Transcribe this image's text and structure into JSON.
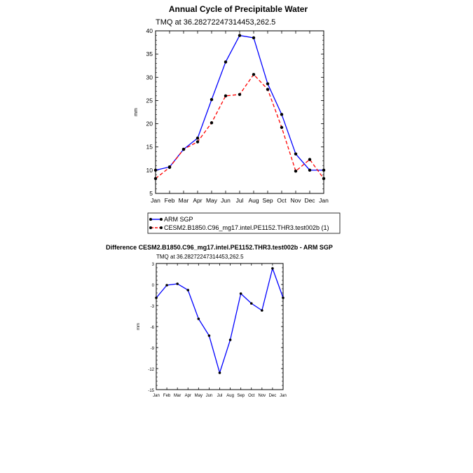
{
  "chart_data": [
    {
      "type": "line",
      "title": "Annual Cycle of Precipitable Water",
      "subtitle": "TMQ at 36.28272247314453,262.5",
      "xlabel": "",
      "ylabel": "mm",
      "categories": [
        "Jan",
        "Feb",
        "Mar",
        "Apr",
        "May",
        "Jun",
        "Jul",
        "Aug",
        "Sep",
        "Oct",
        "Nov",
        "Dec",
        "Jan"
      ],
      "ylim": [
        5,
        40
      ],
      "yticks": [
        5,
        10,
        15,
        20,
        25,
        30,
        35,
        40
      ],
      "series": [
        {
          "name": "ARM SGP",
          "color": "#0000ff",
          "style": "solid",
          "values": [
            10.0,
            10.7,
            14.5,
            16.9,
            25.2,
            33.3,
            39.0,
            38.5,
            28.6,
            22.0,
            13.5,
            10.0,
            10.0
          ]
        },
        {
          "name": "CESM2.B1850.C96_mg17.intel.PE1152.THR3.test002b (1)",
          "color": "#ff0000",
          "style": "dashed",
          "values": [
            8.2,
            10.6,
            14.5,
            16.1,
            20.2,
            26.0,
            26.3,
            30.6,
            27.4,
            19.2,
            9.8,
            12.3,
            8.2
          ]
        }
      ],
      "legend_position": "bottom"
    },
    {
      "type": "line",
      "title": "Difference CESM2.B1850.C96_mg17.intel.PE1152.THR3.test002b - ARM SGP",
      "subtitle": "TMQ at 36.28272247314453,262.5",
      "xlabel": "",
      "ylabel": "mm",
      "categories": [
        "Jan",
        "Feb",
        "Mar",
        "Apr",
        "May",
        "Jun",
        "Jul",
        "Aug",
        "Sep",
        "Oct",
        "Nov",
        "Dec",
        "Jan"
      ],
      "ylim": [
        -15,
        3
      ],
      "yticks": [
        3,
        0,
        -3,
        -6,
        -9,
        -12,
        -15
      ],
      "series": [
        {
          "name": "Difference",
          "color": "#0000ff",
          "style": "solid",
          "values": [
            -1.9,
            -0.1,
            0.1,
            -0.8,
            -4.9,
            -7.3,
            -12.6,
            -7.9,
            -1.3,
            -2.7,
            -3.7,
            2.3,
            -1.9
          ]
        }
      ]
    }
  ],
  "colors": {
    "blue": "#0000ff",
    "red": "#ff0000",
    "marker": "#000000"
  }
}
